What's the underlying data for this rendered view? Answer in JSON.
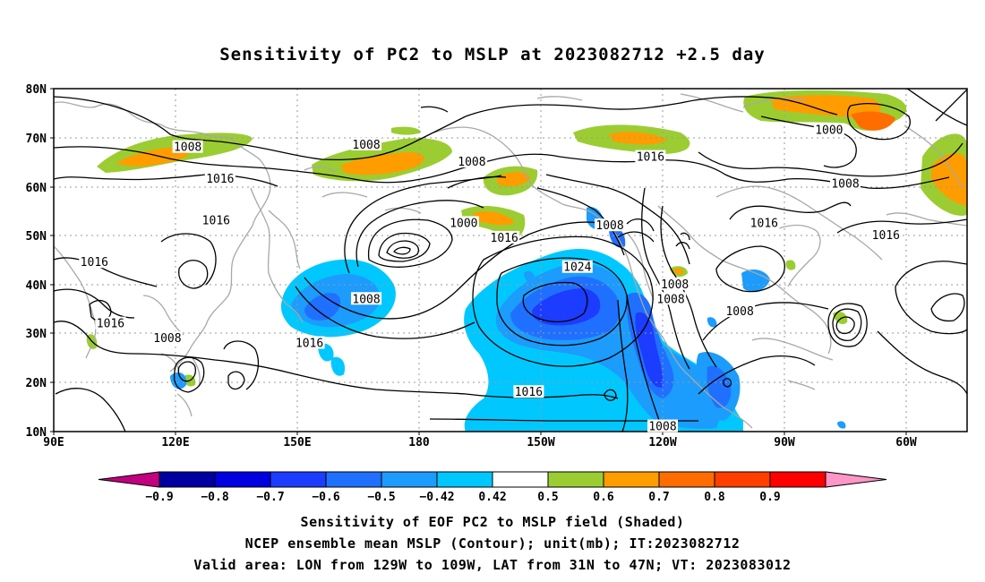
{
  "title": "Sensitivity of PC2 to MSLP at 2023082712 +2.5 day",
  "map": {
    "lat_labels": [
      "80N",
      "70N",
      "60N",
      "50N",
      "40N",
      "30N",
      "20N",
      "10N"
    ],
    "lon_labels": [
      "90E",
      "120E",
      "150E",
      "180",
      "150W",
      "120W",
      "90W",
      "60W"
    ],
    "contour_labels": [
      {
        "text": "1008",
        "lon": 123,
        "lat": 68
      },
      {
        "text": "1016",
        "lon": 131,
        "lat": 61.5
      },
      {
        "text": "1008",
        "lon": 167,
        "lat": 68.5
      },
      {
        "text": "1008",
        "lon": 193,
        "lat": 65
      },
      {
        "text": "1016",
        "lon": 237,
        "lat": 66
      },
      {
        "text": "1000",
        "lon": 281,
        "lat": 71.5
      },
      {
        "text": "1008",
        "lon": 285,
        "lat": 60.5
      },
      {
        "text": "1016",
        "lon": 130,
        "lat": 53
      },
      {
        "text": "1016",
        "lon": 100,
        "lat": 44.5
      },
      {
        "text": "1000",
        "lon": 191,
        "lat": 52.5
      },
      {
        "text": "1016",
        "lon": 201,
        "lat": 49.5
      },
      {
        "text": "1008",
        "lon": 227,
        "lat": 52
      },
      {
        "text": "1016",
        "lon": 265,
        "lat": 52.5
      },
      {
        "text": "1016",
        "lon": 295,
        "lat": 50
      },
      {
        "text": "1008",
        "lon": 167,
        "lat": 37
      },
      {
        "text": "1024",
        "lon": 219,
        "lat": 43.5
      },
      {
        "text": "1008",
        "lon": 243,
        "lat": 40
      },
      {
        "text": "1008",
        "lon": 242,
        "lat": 37
      },
      {
        "text": "1008",
        "lon": 259,
        "lat": 34.5
      },
      {
        "text": "1016",
        "lon": 104,
        "lat": 32
      },
      {
        "text": "1008",
        "lon": 118,
        "lat": 29
      },
      {
        "text": "1016",
        "lon": 153,
        "lat": 28
      },
      {
        "text": "1016",
        "lon": 207,
        "lat": 18
      },
      {
        "text": "1008",
        "lon": 240,
        "lat": 11
      }
    ]
  },
  "colorbar": {
    "tick_labels": [
      "-0.9",
      "-0.8",
      "-0.7",
      "-0.6",
      "-0.5",
      "-0.42",
      "0.42",
      "0.5",
      "0.6",
      "0.7",
      "0.8",
      "0.9"
    ],
    "colors": [
      "#c2007f",
      "#0000a0",
      "#0000e0",
      "#1c3cff",
      "#2070ff",
      "#1c9cfc",
      "#00c8ff",
      "#ffffff",
      "#9bcd32",
      "#ff9d00",
      "#ff6d00",
      "#ff3e00",
      "#ff0000",
      "#ff96c8"
    ]
  },
  "captions": {
    "line1": "Sensitivity of EOF PC2 to MSLP field (Shaded)",
    "line2": "NCEP ensemble mean MSLP (Contour); unit(mb); IT:2023082712",
    "line3": "Valid area: LON from 129W to 109W, LAT from 31N to 47N; VT: 2023083012"
  }
}
